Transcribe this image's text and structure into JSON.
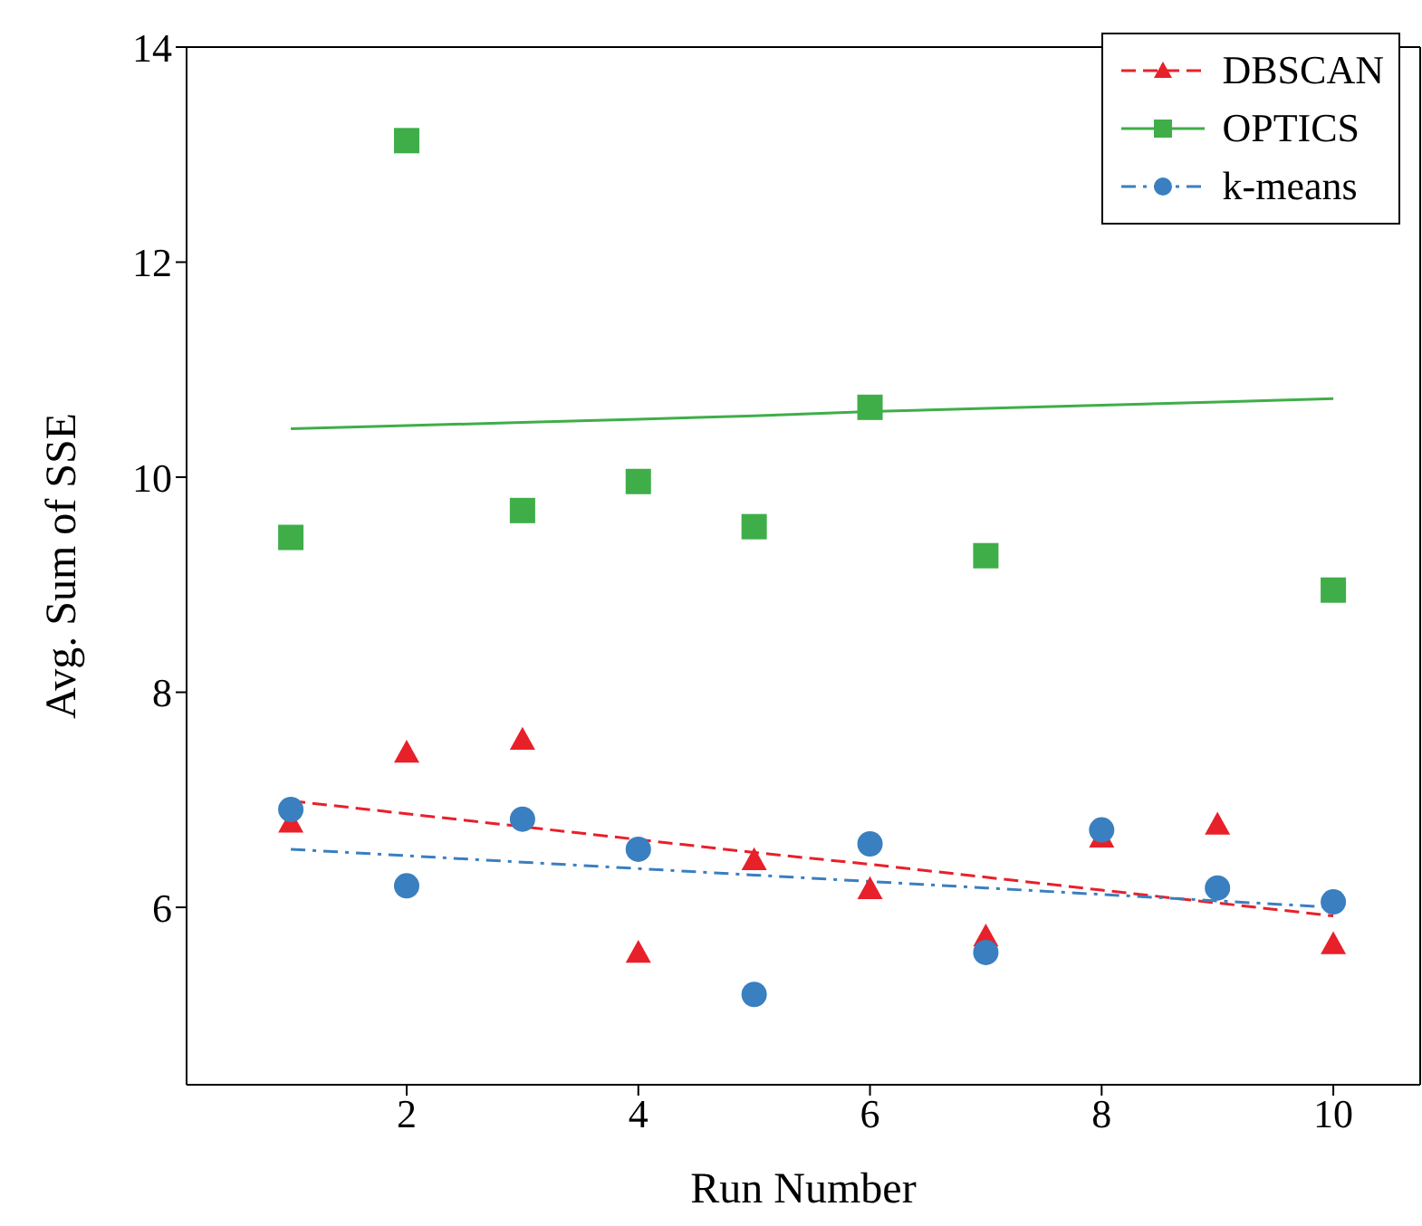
{
  "chart_data": {
    "type": "scatter",
    "xlabel": "Run Number",
    "ylabel": "Avg. Sum of SSE",
    "x": [
      1,
      2,
      3,
      4,
      5,
      6,
      7,
      8,
      9,
      10
    ],
    "series": [
      {
        "name": "DBSCAN",
        "type": "scatter",
        "marker": "triangle",
        "color": "#e8202a",
        "values": [
          6.79,
          7.44,
          7.56,
          5.58,
          6.44,
          6.17,
          5.73,
          6.65,
          6.77,
          5.66
        ]
      },
      {
        "name": "OPTICS",
        "type": "scatter",
        "marker": "square",
        "color": "#3fae49",
        "values": [
          9.44,
          13.13,
          9.69,
          9.96,
          9.54,
          10.65,
          9.27,
          null,
          null,
          8.95
        ]
      },
      {
        "name": "k-means",
        "type": "scatter",
        "marker": "circle",
        "color": "#3a7fc0",
        "values": [
          6.91,
          6.2,
          6.82,
          6.54,
          5.19,
          6.59,
          5.58,
          6.72,
          6.18,
          6.05
        ]
      },
      {
        "type": "line",
        "line_style": "dashed",
        "color": "#e8202a",
        "values": [
          6.99,
          6.87,
          6.75,
          6.63,
          6.51,
          6.4,
          6.28,
          6.16,
          6.04,
          5.92
        ]
      },
      {
        "type": "line",
        "line_style": "solid",
        "color": "#3fae49",
        "values": [
          10.45,
          10.48,
          10.51,
          10.54,
          10.57,
          10.61,
          10.64,
          10.67,
          10.7,
          10.73
        ]
      },
      {
        "type": "line",
        "line_style": "dashdot",
        "color": "#3a7fc0",
        "values": [
          6.54,
          6.48,
          6.42,
          6.36,
          6.3,
          6.24,
          6.18,
          6.12,
          6.06,
          6.0
        ]
      }
    ],
    "xlim": [
      0.1,
      10.75
    ],
    "xticks": [
      2,
      4,
      6,
      8,
      10
    ],
    "ylim": [
      4.35,
      14
    ],
    "yticks": [
      6,
      8,
      10,
      12,
      14
    ],
    "legend": "top right"
  }
}
